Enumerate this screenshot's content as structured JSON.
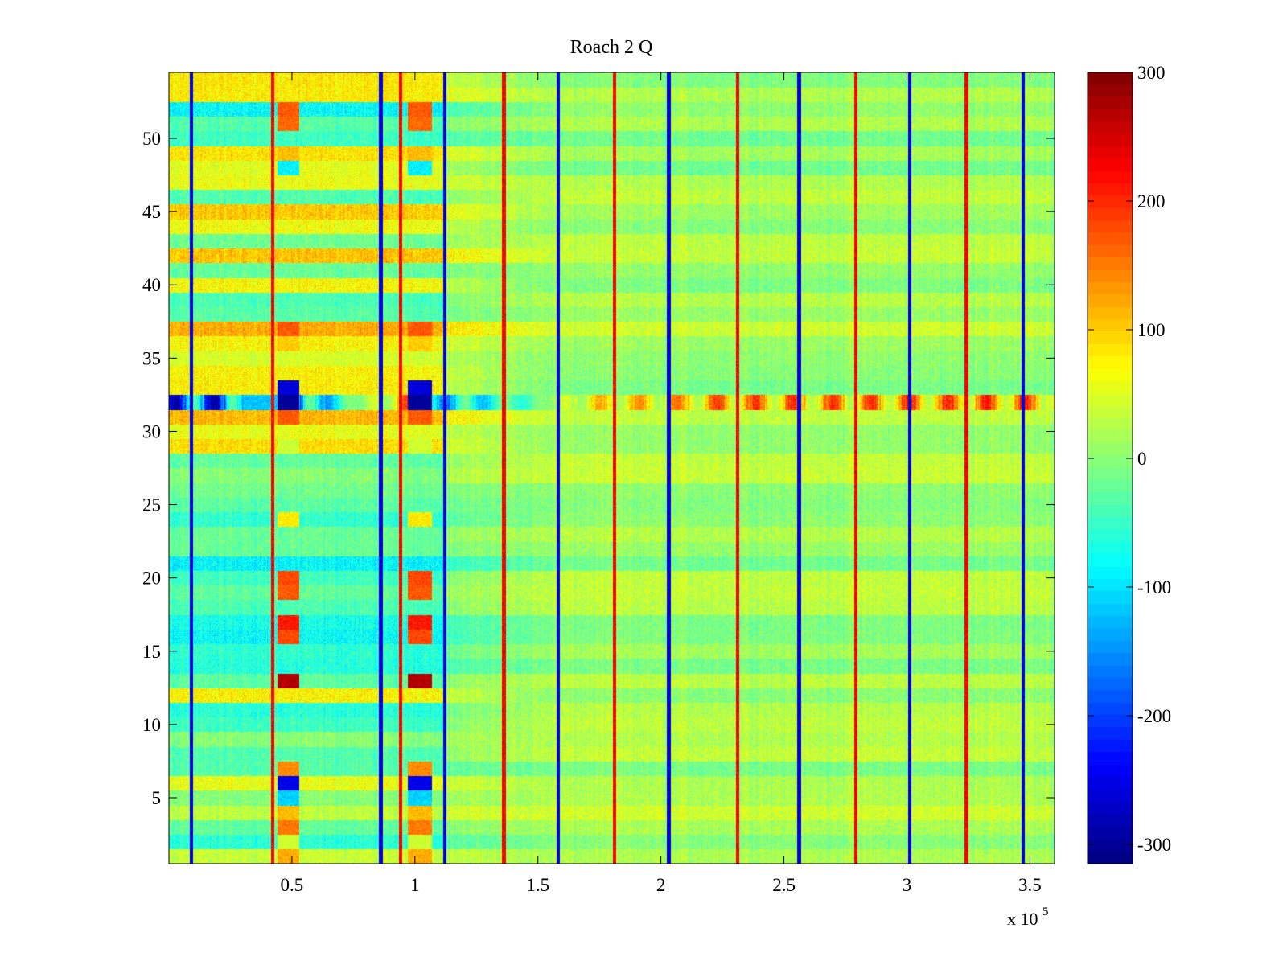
{
  "chart_data": [
    {
      "type": "heatmap",
      "title": "Roach 2 Q",
      "xlabel": "",
      "ylabel": "",
      "x_exponent_label": "x 10",
      "x_exponent": "5",
      "xlim": [
        0,
        3.6
      ],
      "ylim": [
        0.5,
        54.5
      ],
      "x_ticks": [
        0.5,
        1,
        1.5,
        2,
        2.5,
        3,
        3.5
      ],
      "x_tick_labels": [
        "0.5",
        "1",
        "1.5",
        "2",
        "2.5",
        "3",
        "3.5"
      ],
      "y_ticks": [
        5,
        10,
        15,
        20,
        25,
        30,
        35,
        40,
        45,
        50
      ],
      "y_tick_labels": [
        "5",
        "10",
        "15",
        "20",
        "25",
        "30",
        "35",
        "40",
        "45",
        "50"
      ],
      "rows": 54,
      "colormap": "jet",
      "clim": [
        -315,
        300
      ],
      "features": {
        "dark_column_lines_x": [
          0.09,
          0.42,
          0.86,
          0.94,
          1.12,
          1.36,
          1.58,
          1.81,
          2.03,
          2.31,
          2.56,
          2.79,
          3.01,
          3.24,
          3.47
        ],
        "hot_row": 32,
        "strong_block_left_x": [
          0.44,
          0.53
        ],
        "strong_block_right_x": [
          0.97,
          1.07
        ],
        "block_values_by_row": {
          "1": 120,
          "2": 40,
          "3": 150,
          "4": 110,
          "5": -110,
          "6": -250,
          "7": 140,
          "13": 270,
          "16": 180,
          "17": 210,
          "19": 170,
          "20": 180,
          "24": 80,
          "29": 40,
          "31": 170,
          "32": -300,
          "33": -260,
          "36": 100,
          "37": 170,
          "48": -90,
          "49": 110,
          "51": 160,
          "52": 170
        },
        "hot_row_values": {
          "x_positions": [
            0.44,
            0.53,
            0.97,
            1.02,
            1.5,
            1.7,
            2.0,
            2.2,
            2.4,
            2.6,
            2.8,
            3.0,
            3.2,
            3.4,
            3.55
          ],
          "values": [
            -300,
            -280,
            200,
            -220,
            -40,
            120,
            150,
            190,
            200,
            210,
            190,
            220,
            210,
            230,
            200
          ]
        },
        "band_offsets_left_by_row": {
          "1": 20,
          "2": -60,
          "3": -40,
          "5": -20,
          "6": 40,
          "7": -30,
          "8": -60,
          "9": -20,
          "10": -70,
          "11": -80,
          "12": 70,
          "13": -50,
          "14": -60,
          "15": -70,
          "16": -80,
          "17": -70,
          "18": -60,
          "19": -50,
          "20": -70,
          "21": -80,
          "22": -30,
          "23": -40,
          "24": -60,
          "25": -30,
          "26": -20,
          "27": -30,
          "28": -50,
          "29": 80,
          "30": 50,
          "31": 90,
          "33": 80,
          "34": 70,
          "35": 40,
          "36": 60,
          "37": 90,
          "38": -40,
          "39": -60,
          "40": 70,
          "41": -30,
          "42": 80,
          "43": -40,
          "44": 60,
          "45": 90,
          "46": -60,
          "47": 40,
          "48": 60,
          "49": 70,
          "50": -40,
          "51": -50,
          "52": -90,
          "53": 60,
          "54": 80
        }
      }
    },
    {
      "type": "colorbar",
      "range": [
        -315,
        300
      ],
      "ticks": [
        300,
        200,
        100,
        0,
        -100,
        -200,
        -300
      ],
      "tick_labels": [
        "300",
        "200",
        "100",
        "0",
        "-100",
        "-200",
        "-300"
      ]
    }
  ]
}
